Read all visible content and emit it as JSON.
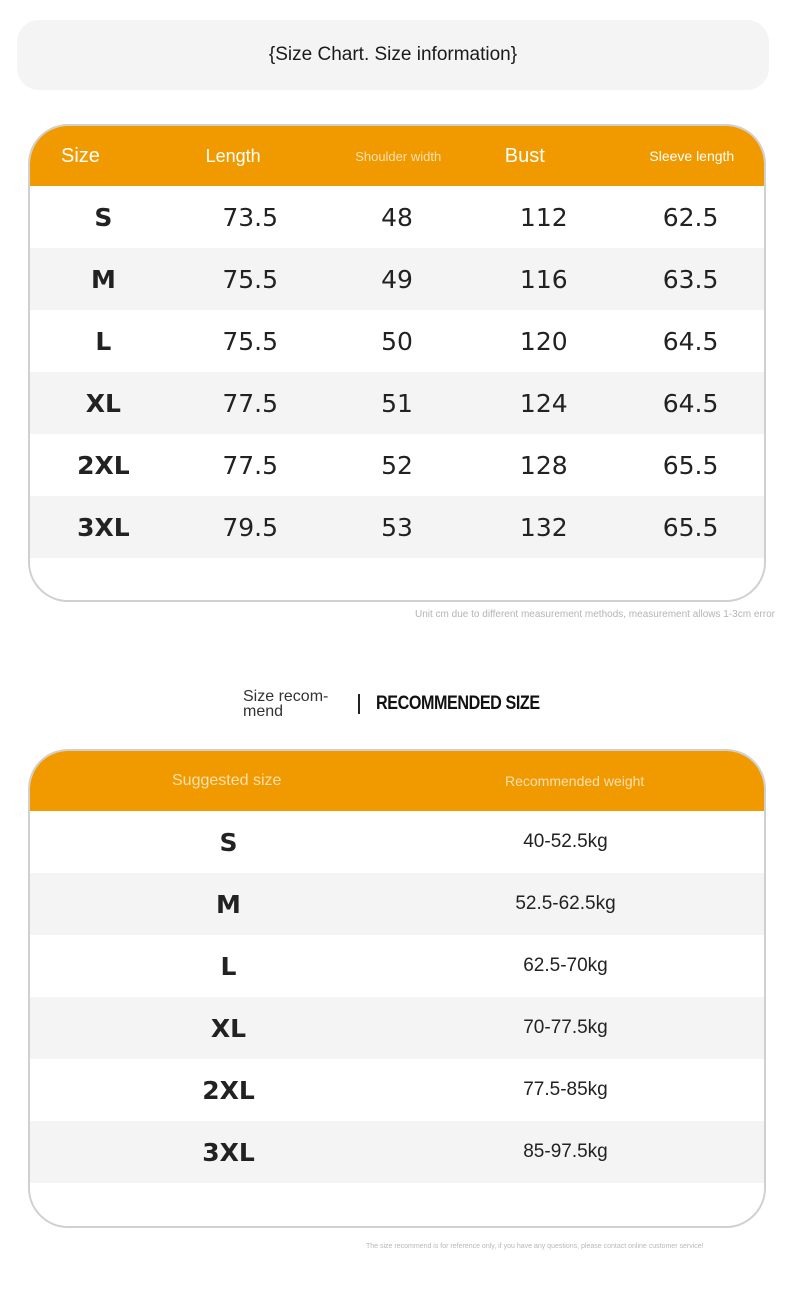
{
  "title": "{Size Chart. Size information}",
  "size_chart": {
    "headers": [
      "Size",
      "Length",
      "Shoulder width",
      "Bust",
      "Sleeve length"
    ],
    "rows": [
      [
        "S",
        "73.5",
        "48",
        "112",
        "62.5"
      ],
      [
        "M",
        "75.5",
        "49",
        "116",
        "63.5"
      ],
      [
        "L",
        "75.5",
        "50",
        "120",
        "64.5"
      ],
      [
        "XL",
        "77.5",
        "51",
        "124",
        "64.5"
      ],
      [
        "2XL",
        "77.5",
        "52",
        "128",
        "65.5"
      ],
      [
        "3XL",
        "79.5",
        "53",
        "132",
        "65.5"
      ]
    ],
    "note": "Unit cm due to different measurement methods, measurement allows 1-3cm error"
  },
  "recommend": {
    "label_left": "Size recom-mend",
    "label_right": "RECOMMENDED SIZE",
    "headers": [
      "Suggested size",
      "Recommended weight"
    ],
    "rows": [
      [
        "S",
        "40-52.5kg"
      ],
      [
        "M",
        "52.5-62.5kg"
      ],
      [
        "L",
        "62.5-70kg"
      ],
      [
        "XL",
        "70-77.5kg"
      ],
      [
        "2XL",
        "77.5-85kg"
      ],
      [
        "3XL",
        "85-97.5kg"
      ]
    ],
    "note": "The size recommend is for reference only, if you have any questions, please contact online customer service!"
  },
  "colors": {
    "accent": "#f19a00",
    "stripe": "#f4f4f4",
    "border": "#d0d0d0"
  }
}
